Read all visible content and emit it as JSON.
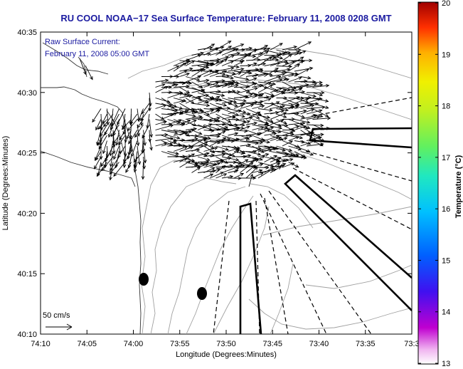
{
  "title": "RU COOL  NOAA−17  Sea Surface Temperature:  February 11, 2008 0208 GMT",
  "annotation": {
    "line1": "Raw Surface Current:",
    "line2": "February 11, 2008 05:00 GMT"
  },
  "scale": {
    "label": "50 cm/s"
  },
  "xaxis": {
    "label": "Longitude (Degrees:Minutes)",
    "ticks": [
      "74:10",
      "74:05",
      "74:00",
      "73:55",
      "73:50",
      "73:45",
      "73:40",
      "73:35",
      "73:3"
    ]
  },
  "yaxis": {
    "label": "Latitude (Degrees:Minutes)",
    "ticks": [
      "40:35",
      "40:30",
      "40:25",
      "40:20",
      "40:15",
      "40:10"
    ]
  },
  "colorbar": {
    "label": "Temperature (°C)",
    "ticks": [
      "20",
      "19",
      "18",
      "17",
      "16",
      "15",
      "14",
      "13"
    ]
  },
  "colors": {
    "title": "#1a1aa0",
    "land": "#ffffff",
    "coast": "#000000",
    "bathymetry": "#a0a0a0"
  },
  "icons": {
    "arrows": "current-vector-icon",
    "buoys": "buoy-marker-icon"
  }
}
